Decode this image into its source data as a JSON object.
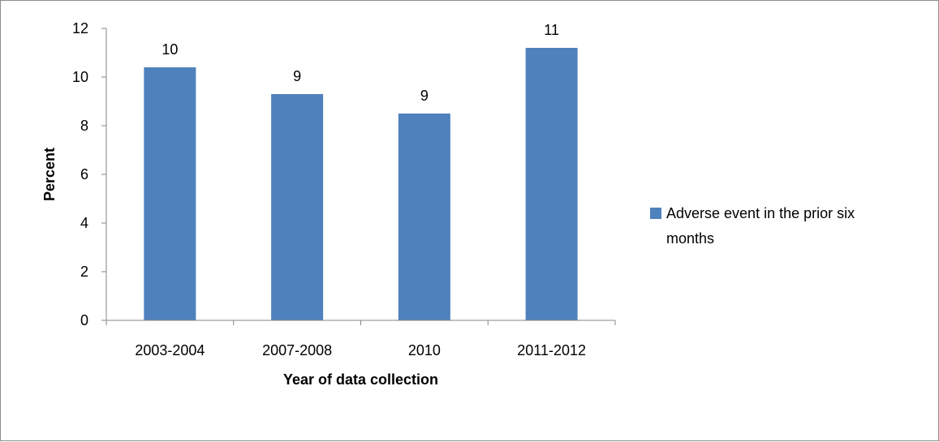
{
  "chart_data": {
    "type": "bar",
    "categories": [
      "2003-2004",
      "2007-2008",
      "2010",
      "2011-2012"
    ],
    "series": [
      {
        "name": "Adverse event in the prior six months",
        "values": [
          10.4,
          9.3,
          8.5,
          11.2
        ],
        "data_labels": [
          "10",
          "9",
          "9",
          "11"
        ],
        "color": "#4f81bd"
      }
    ],
    "y_ticks": [
      "0",
      "2",
      "4",
      "6",
      "8",
      "10",
      "12"
    ],
    "ylim": [
      0,
      12
    ],
    "xlabel": "Year of data collection",
    "ylabel": "Percent",
    "legend": {
      "position": "right",
      "lines": [
        "Adverse event in the prior six",
        "months"
      ]
    },
    "grid": false
  }
}
